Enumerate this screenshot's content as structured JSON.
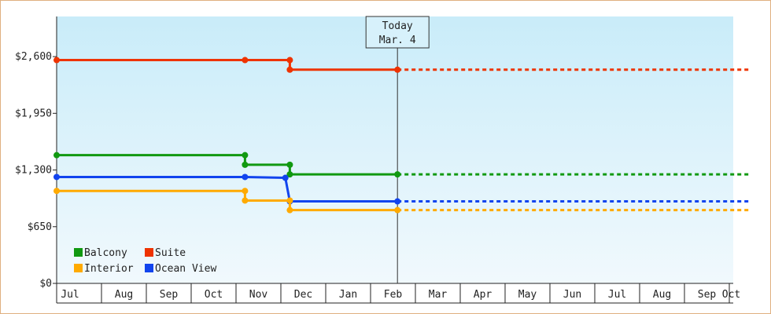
{
  "chart_data": {
    "type": "line",
    "step": true,
    "currency_prefix": "$",
    "x_ticks": [
      "Jul",
      "Aug",
      "Sep",
      "Oct",
      "Nov",
      "Dec",
      "Jan",
      "Feb",
      "Mar",
      "Apr",
      "May",
      "Jun",
      "Jul",
      "Aug",
      "Sep",
      "Oct"
    ],
    "y_ticks": [
      0,
      650,
      1300,
      1950,
      2600
    ],
    "y_tick_labels": [
      "$0",
      "$650",
      "$1,300",
      "$1,950",
      "$2,600"
    ],
    "ylim": [
      0,
      3060
    ],
    "today_marker": {
      "line1": "Today",
      "line2": "Mar. 4",
      "month_index": 7.6
    },
    "forecast_end_month_index": 15.45,
    "series": [
      {
        "name": "Suite",
        "color": "#ee3300",
        "points": [
          {
            "m": 0.0,
            "v": 2560
          },
          {
            "m": 4.2,
            "v": 2560
          },
          {
            "m": 5.2,
            "v": 2560
          },
          {
            "m": 5.2,
            "v": 2450
          },
          {
            "m": 7.6,
            "v": 2450
          }
        ]
      },
      {
        "name": "Balcony",
        "color": "#119911",
        "points": [
          {
            "m": 0.0,
            "v": 1470
          },
          {
            "m": 4.2,
            "v": 1470
          },
          {
            "m": 4.2,
            "v": 1360
          },
          {
            "m": 5.2,
            "v": 1360
          },
          {
            "m": 5.2,
            "v": 1250
          },
          {
            "m": 7.6,
            "v": 1250
          }
        ]
      },
      {
        "name": "Ocean View",
        "color": "#1144ee",
        "points": [
          {
            "m": 0.0,
            "v": 1220
          },
          {
            "m": 4.2,
            "v": 1220
          },
          {
            "m": 5.1,
            "v": 1210
          },
          {
            "m": 5.2,
            "v": 940
          },
          {
            "m": 7.6,
            "v": 940
          }
        ]
      },
      {
        "name": "Interior",
        "color": "#ffaa00",
        "points": [
          {
            "m": 0.0,
            "v": 1060
          },
          {
            "m": 4.2,
            "v": 1060
          },
          {
            "m": 4.2,
            "v": 950
          },
          {
            "m": 5.2,
            "v": 950
          },
          {
            "m": 5.2,
            "v": 840
          },
          {
            "m": 7.6,
            "v": 840
          }
        ]
      }
    ],
    "legend": [
      {
        "label": "Balcony",
        "color": "#119911"
      },
      {
        "label": "Suite",
        "color": "#ee3300"
      },
      {
        "label": "Interior",
        "color": "#ffaa00"
      },
      {
        "label": "Ocean View",
        "color": "#1144ee"
      }
    ],
    "legend_position": "bottom-left",
    "grid": false
  }
}
